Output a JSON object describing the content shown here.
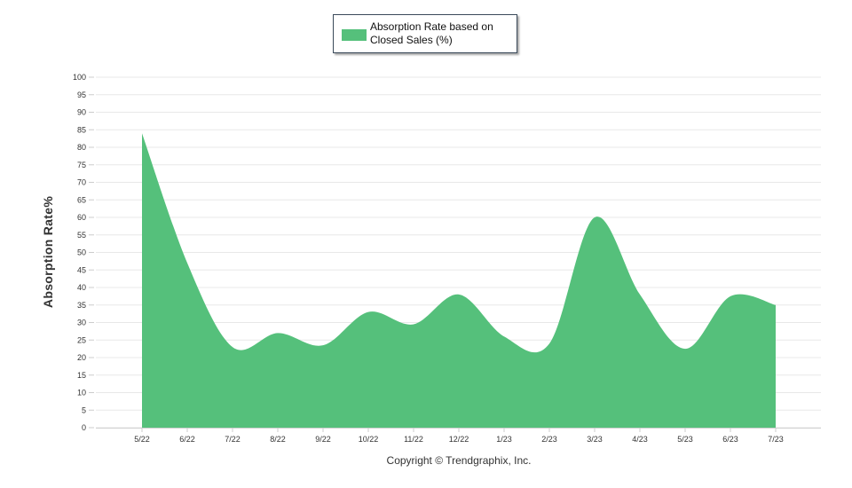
{
  "chart_data": {
    "type": "area",
    "legend": {
      "label": "Absorption Rate based on Closed Sales (%)",
      "position": "top-center"
    },
    "ylabel": "Absorption Rate%",
    "ylim": [
      0,
      100
    ],
    "yticks": [
      0,
      5,
      10,
      15,
      20,
      25,
      30,
      35,
      40,
      45,
      50,
      55,
      60,
      65,
      70,
      75,
      80,
      85,
      90,
      95,
      100
    ],
    "grid": true,
    "categories": [
      "5/22",
      "6/22",
      "7/22",
      "8/22",
      "9/22",
      "10/22",
      "11/22",
      "12/22",
      "1/23",
      "2/23",
      "3/23",
      "4/23",
      "5/23",
      "6/23",
      "7/23"
    ],
    "series": [
      {
        "name": "Absorption Rate based on Closed Sales (%)",
        "color": "#55c07b",
        "values": [
          84,
          47,
          23,
          27,
          23.5,
          33,
          29.5,
          38,
          26,
          24,
          60,
          38,
          22.5,
          37.5,
          35
        ]
      }
    ]
  },
  "footer": {
    "copyright": "Copyright © Trendgraphix, Inc."
  }
}
